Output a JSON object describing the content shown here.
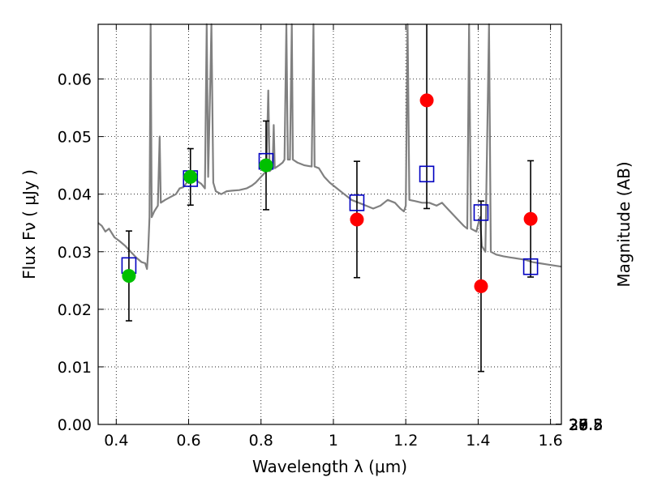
{
  "chart_data": {
    "type": "scatter",
    "xlabel": "Wavelength  λ (μm)",
    "ylabel": "Flux  Fν  ( μJy )",
    "y2label": "Magnitude (AB)",
    "xlim": [
      0.35,
      1.63
    ],
    "ylim": [
      0.0,
      0.0695
    ],
    "grid": true,
    "x_ticks": [
      {
        "value": 0.4,
        "label": "0.4"
      },
      {
        "value": 0.6,
        "label": "0.6"
      },
      {
        "value": 0.8,
        "label": "0.8"
      },
      {
        "value": 1.0,
        "label": "1"
      },
      {
        "value": 1.2,
        "label": "1.2"
      },
      {
        "value": 1.4,
        "label": "1.4"
      },
      {
        "value": 1.6,
        "label": "1.6"
      }
    ],
    "y_ticks": [
      {
        "value": 0.0,
        "label": "0.00"
      },
      {
        "value": 0.01,
        "label": "0.01"
      },
      {
        "value": 0.02,
        "label": "0.02"
      },
      {
        "value": 0.03,
        "label": "0.03"
      },
      {
        "value": 0.04,
        "label": "0.04"
      },
      {
        "value": 0.05,
        "label": "0.05"
      },
      {
        "value": 0.06,
        "label": "0.06"
      }
    ],
    "y2_ticks": [
      {
        "mag": 26.8,
        "label": "26.8"
      },
      {
        "mag": 27.0,
        "label": "27"
      },
      {
        "mag": 27.2,
        "label": "27.2"
      },
      {
        "mag": 27.5,
        "label": "27.5"
      },
      {
        "mag": 28.0,
        "label": "28"
      },
      {
        "mag": 28.5,
        "label": "28.5"
      },
      {
        "mag": 29.0,
        "label": "29"
      },
      {
        "mag": 30.0,
        "label": "30"
      }
    ],
    "series": [
      {
        "style": "circle",
        "color": "#00c000",
        "points": [
          {
            "x": 0.435,
            "y": 0.0258,
            "err": 0.0078
          },
          {
            "x": 0.605,
            "y": 0.043,
            "err": 0.0049
          },
          {
            "x": 0.814,
            "y": 0.045,
            "err": 0.0077
          }
        ]
      },
      {
        "style": "circle",
        "color": "#ff0000",
        "points": [
          {
            "x": 1.065,
            "y": 0.0356,
            "err": 0.0101
          },
          {
            "x": 1.258,
            "y": 0.0563,
            "err": 0.0188
          },
          {
            "x": 1.408,
            "y": 0.024,
            "err": 0.0148
          },
          {
            "x": 1.545,
            "y": 0.0357,
            "err": 0.0101
          }
        ]
      },
      {
        "style": "open-square",
        "color": "#0000c0",
        "points": [
          {
            "x": 0.435,
            "y": 0.0276
          },
          {
            "x": 0.605,
            "y": 0.0427
          },
          {
            "x": 0.814,
            "y": 0.0457
          },
          {
            "x": 1.065,
            "y": 0.0385
          },
          {
            "x": 1.258,
            "y": 0.0435
          },
          {
            "x": 1.408,
            "y": 0.0368
          },
          {
            "x": 1.545,
            "y": 0.0274
          }
        ]
      },
      {
        "style": "line",
        "color": "#808080",
        "points": [
          [
            0.35,
            0.035
          ],
          [
            0.36,
            0.0345
          ],
          [
            0.37,
            0.0335
          ],
          [
            0.38,
            0.034
          ],
          [
            0.395,
            0.0325
          ],
          [
            0.41,
            0.0318
          ],
          [
            0.425,
            0.031
          ],
          [
            0.44,
            0.03
          ],
          [
            0.455,
            0.029
          ],
          [
            0.47,
            0.0282
          ],
          [
            0.48,
            0.028
          ],
          [
            0.485,
            0.027
          ],
          [
            0.488,
            0.03
          ],
          [
            0.492,
            0.036
          ],
          [
            0.495,
            0.07
          ],
          [
            0.498,
            0.036
          ],
          [
            0.505,
            0.037
          ],
          [
            0.515,
            0.038
          ],
          [
            0.52,
            0.05
          ],
          [
            0.523,
            0.0385
          ],
          [
            0.535,
            0.039
          ],
          [
            0.55,
            0.0395
          ],
          [
            0.565,
            0.04
          ],
          [
            0.575,
            0.041
          ],
          [
            0.585,
            0.0412
          ],
          [
            0.595,
            0.042
          ],
          [
            0.605,
            0.0424
          ],
          [
            0.615,
            0.043
          ],
          [
            0.625,
            0.0422
          ],
          [
            0.635,
            0.0418
          ],
          [
            0.645,
            0.041
          ],
          [
            0.65,
            0.07
          ],
          [
            0.654,
            0.043
          ],
          [
            0.66,
            0.06
          ],
          [
            0.663,
            0.07
          ],
          [
            0.668,
            0.042
          ],
          [
            0.675,
            0.0405
          ],
          [
            0.69,
            0.04
          ],
          [
            0.705,
            0.0405
          ],
          [
            0.72,
            0.0406
          ],
          [
            0.74,
            0.0407
          ],
          [
            0.76,
            0.041
          ],
          [
            0.775,
            0.0415
          ],
          [
            0.785,
            0.042
          ],
          [
            0.8,
            0.043
          ],
          [
            0.815,
            0.044
          ],
          [
            0.82,
            0.058
          ],
          [
            0.824,
            0.044
          ],
          [
            0.832,
            0.0445
          ],
          [
            0.835,
            0.052
          ],
          [
            0.838,
            0.0445
          ],
          [
            0.85,
            0.045
          ],
          [
            0.86,
            0.0455
          ],
          [
            0.865,
            0.046
          ],
          [
            0.87,
            0.07
          ],
          [
            0.874,
            0.046
          ],
          [
            0.88,
            0.046
          ],
          [
            0.885,
            0.07
          ],
          [
            0.888,
            0.046
          ],
          [
            0.9,
            0.0455
          ],
          [
            0.92,
            0.045
          ],
          [
            0.94,
            0.0448
          ],
          [
            0.945,
            0.07
          ],
          [
            0.948,
            0.0448
          ],
          [
            0.96,
            0.0445
          ],
          [
            0.975,
            0.043
          ],
          [
            0.99,
            0.042
          ],
          [
            1.01,
            0.041
          ],
          [
            1.03,
            0.04
          ],
          [
            1.05,
            0.039
          ],
          [
            1.07,
            0.0385
          ],
          [
            1.09,
            0.038
          ],
          [
            1.11,
            0.0375
          ],
          [
            1.13,
            0.038
          ],
          [
            1.15,
            0.039
          ],
          [
            1.17,
            0.0385
          ],
          [
            1.185,
            0.0375
          ],
          [
            1.195,
            0.037
          ],
          [
            1.2,
            0.038
          ],
          [
            1.205,
            0.07
          ],
          [
            1.21,
            0.039
          ],
          [
            1.225,
            0.0388
          ],
          [
            1.245,
            0.0385
          ],
          [
            1.265,
            0.0385
          ],
          [
            1.285,
            0.038
          ],
          [
            1.3,
            0.0385
          ],
          [
            1.315,
            0.0375
          ],
          [
            1.33,
            0.0365
          ],
          [
            1.345,
            0.0355
          ],
          [
            1.36,
            0.0345
          ],
          [
            1.37,
            0.034
          ],
          [
            1.375,
            0.07
          ],
          [
            1.38,
            0.034
          ],
          [
            1.395,
            0.0335
          ],
          [
            1.405,
            0.036
          ],
          [
            1.41,
            0.031
          ],
          [
            1.42,
            0.03
          ],
          [
            1.43,
            0.07
          ],
          [
            1.435,
            0.03
          ],
          [
            1.45,
            0.0295
          ],
          [
            1.47,
            0.0292
          ],
          [
            1.49,
            0.029
          ],
          [
            1.51,
            0.0288
          ],
          [
            1.53,
            0.0286
          ],
          [
            1.55,
            0.0282
          ],
          [
            1.57,
            0.028
          ],
          [
            1.59,
            0.0278
          ],
          [
            1.61,
            0.0276
          ],
          [
            1.63,
            0.0274
          ]
        ]
      }
    ]
  }
}
